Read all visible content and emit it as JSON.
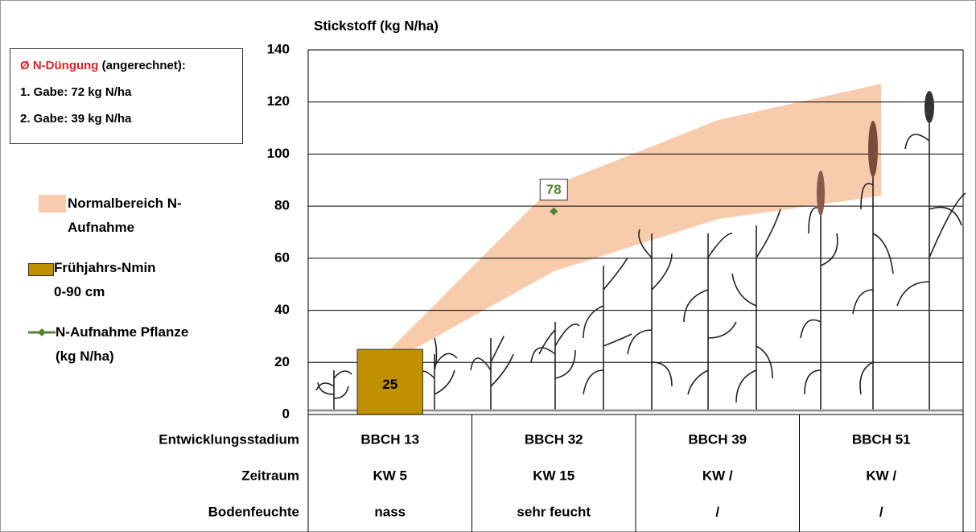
{
  "chart_data": {
    "type": "combo",
    "title": "Stickstoff (kg N/ha)",
    "categories": [
      "BBCH 13",
      "BBCH 32",
      "BBCH 39",
      "BBCH 51"
    ],
    "ylim": [
      0,
      140
    ],
    "yticks": [
      0,
      20,
      40,
      60,
      80,
      100,
      120,
      140
    ],
    "grid": true,
    "series": [
      {
        "name": "Normalbereich N-Aufnahme",
        "type": "band",
        "color": "#f8cbad",
        "lower": [
          20,
          55,
          75,
          84
        ],
        "upper": [
          25,
          88,
          113,
          127
        ]
      },
      {
        "name": "Frühjahrs-Nmin 0-90 cm",
        "type": "bar",
        "color": "#bf9000",
        "values": [
          25,
          null,
          null,
          null
        ]
      },
      {
        "name": "N-Aufnahme Pflanze (kg N/ha)",
        "type": "line",
        "color": "#548235",
        "values": [
          null,
          78,
          null,
          null
        ]
      }
    ],
    "info": {
      "heading": "Ø N-Düngung",
      "heading_note": "(angerechnet):",
      "lines": [
        "1. Gabe: 72 kg N/ha",
        "2. Gabe: 39 kg N/ha"
      ]
    },
    "table_rows": [
      {
        "label": "Entwicklungsstadium"
      },
      {
        "label": "Zeitraum",
        "values": [
          "KW 5",
          "KW 15",
          "KW /",
          "KW /"
        ]
      },
      {
        "label": "Bodenfeuchte",
        "values": [
          "nass",
          "sehr feucht",
          "/",
          "/"
        ]
      }
    ]
  }
}
